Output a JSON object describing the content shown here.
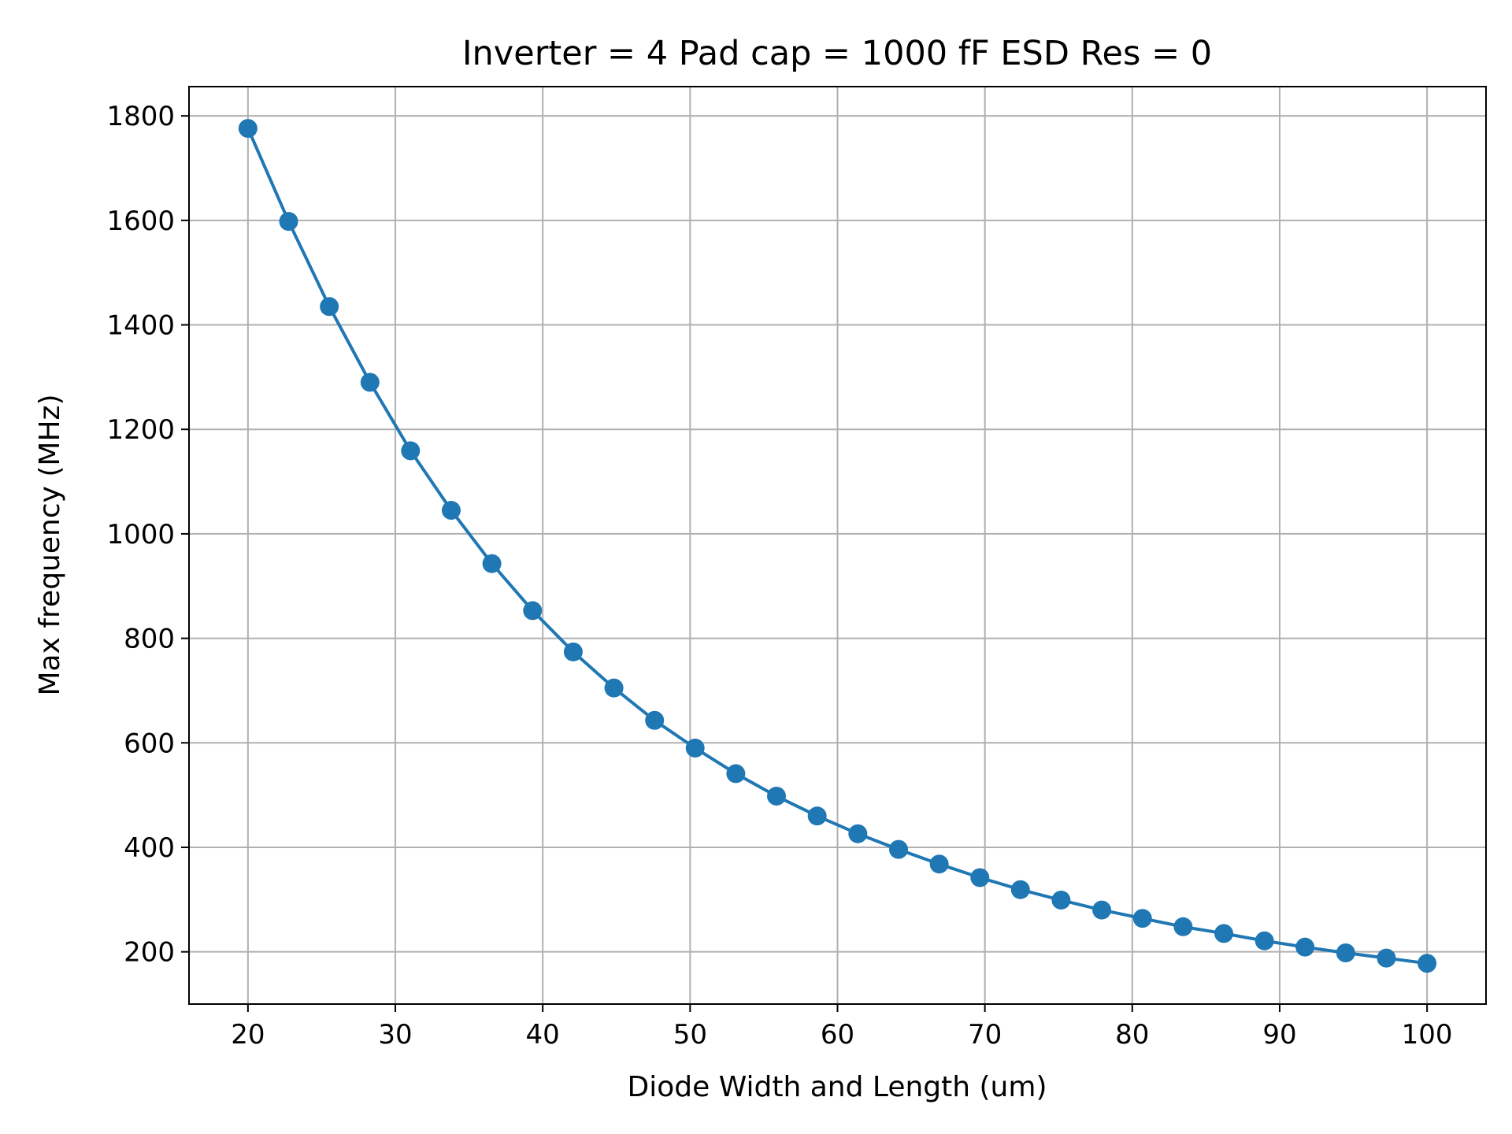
{
  "chart_data": {
    "type": "line",
    "title": "Inverter = 4 Pad cap = 1000 fF ESD Res = 0",
    "xlabel": "Diode Width and Length (um)",
    "ylabel": "Max frequency (MHz)",
    "xlim": [
      16,
      104
    ],
    "ylim": [
      100,
      1856
    ],
    "x_ticks": [
      20,
      30,
      40,
      50,
      60,
      70,
      80,
      90,
      100
    ],
    "y_ticks": [
      200,
      400,
      600,
      800,
      1000,
      1200,
      1400,
      1600,
      1800
    ],
    "grid": true,
    "marker": "circle",
    "series": [
      {
        "color": "#1f77b4",
        "x": [
          20.0,
          22.76,
          25.52,
          28.28,
          31.03,
          33.79,
          36.55,
          39.31,
          42.07,
          44.83,
          47.59,
          50.34,
          53.1,
          55.86,
          58.62,
          61.38,
          64.14,
          66.9,
          69.66,
          72.41,
          75.17,
          77.93,
          80.69,
          83.45,
          86.21,
          88.97,
          91.72,
          94.48,
          97.24,
          100.0
        ],
        "values": [
          1776,
          1598,
          1435,
          1290,
          1159,
          1045,
          943,
          853,
          774,
          705,
          643,
          590,
          541,
          498,
          460,
          426,
          396,
          368,
          342,
          319,
          299,
          280,
          264,
          248,
          235,
          221,
          209,
          198,
          188,
          178
        ]
      }
    ]
  }
}
